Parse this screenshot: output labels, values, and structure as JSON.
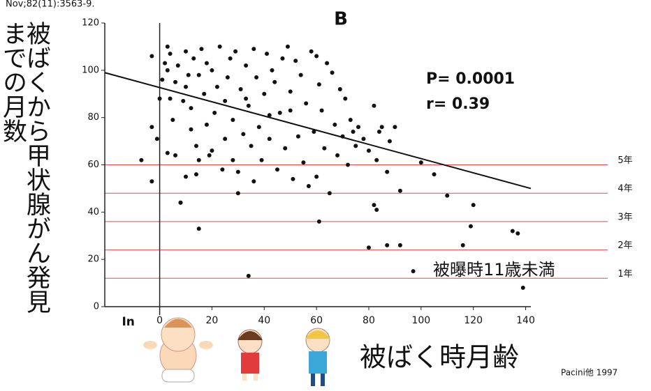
{
  "chart_data": {
    "type": "scatter",
    "citation": "Nov;82(11):3563-9.",
    "title": "B",
    "ylabel": [
      "被ばくから甲状腺がん発見",
      "までの月数"
    ],
    "xlabel": "被ばく時月齢",
    "annotations": [
      "P= 0.0001",
      "r= 0.39",
      "被曝時11歳未満"
    ],
    "source": "Pacini他  1997",
    "xlim": [
      -21,
      142
    ],
    "ylim": [
      0,
      120
    ],
    "xticks": [
      {
        "value": -12,
        "label": "In"
      },
      0,
      20,
      40,
      60,
      80,
      100,
      120,
      140
    ],
    "yticks": [
      0,
      20,
      40,
      60,
      80,
      100,
      120
    ],
    "reference_lines": [
      {
        "value": 60,
        "label": "5年"
      },
      {
        "value": 48,
        "label": "4年"
      },
      {
        "value": 36,
        "label": "3年"
      },
      {
        "value": 24,
        "label": "2年"
      },
      {
        "value": 12,
        "label": "1年"
      }
    ],
    "reference_color": "#e8464b",
    "trend_line": {
      "x": [
        -21,
        142
      ],
      "values": [
        99,
        50
      ],
      "color": "#111111"
    },
    "series": [
      {
        "color": "#111111",
        "x": [
          -7,
          -3,
          -3,
          -3,
          -1,
          0,
          1,
          2,
          3,
          4,
          3,
          4,
          5,
          6,
          6,
          7,
          8,
          9,
          10,
          10,
          11,
          12,
          12,
          13,
          14,
          14,
          15,
          15,
          16,
          17,
          18,
          18,
          19,
          20,
          20,
          21,
          22,
          23,
          24,
          25,
          25,
          26,
          27,
          28,
          28,
          29,
          30,
          31,
          32,
          33,
          33,
          34,
          35,
          36,
          36,
          37,
          38,
          39,
          40,
          41,
          42,
          42,
          43,
          44,
          45,
          46,
          47,
          48,
          49,
          50,
          50,
          51,
          52,
          53,
          54,
          55,
          56,
          57,
          58,
          59,
          60,
          60,
          61,
          62,
          63,
          64,
          65,
          66,
          67,
          68,
          69,
          70,
          71,
          72,
          73,
          74,
          75,
          76,
          78,
          80,
          82,
          83,
          84,
          85,
          87,
          88,
          90,
          92,
          97,
          100,
          105,
          110,
          116,
          119,
          120,
          135,
          137,
          139,
          34,
          15,
          8,
          61,
          80,
          87,
          92,
          82,
          83,
          3,
          10,
          30
        ],
        "values": [
          62,
          53,
          76,
          106,
          71,
          88,
          96,
          103,
          100,
          107,
          65,
          88,
          79,
          95,
          64,
          102,
          44,
          87,
          108,
          93,
          98,
          75,
          84,
          105,
          56,
          68,
          62,
          98,
          109,
          90,
          77,
          103,
          64,
          66,
          100,
          82,
          93,
          110,
          58,
          71,
          87,
          97,
          105,
          62,
          79,
          108,
          57,
          92,
          73,
          88,
          102,
          85,
          68,
          109,
          53,
          97,
          76,
          62,
          90,
          107,
          81,
          71,
          100,
          95,
          58,
          82,
          105,
          67,
          110,
          91,
          83,
          54,
          104,
          72,
          98,
          61,
          86,
          51,
          108,
          74,
          106,
          55,
          94,
          83,
          67,
          103,
          48,
          99,
          77,
          64,
          92,
          72,
          88,
          60,
          79,
          74,
          68,
          76,
          71,
          66,
          85,
          62,
          74,
          76,
          57,
          70,
          76,
          49,
          15,
          61,
          56,
          47,
          26,
          34,
          43,
          32,
          31,
          8,
          13,
          33,
          44,
          36,
          25,
          26,
          26,
          43,
          41,
          110,
          55,
          48
        ]
      }
    ]
  }
}
